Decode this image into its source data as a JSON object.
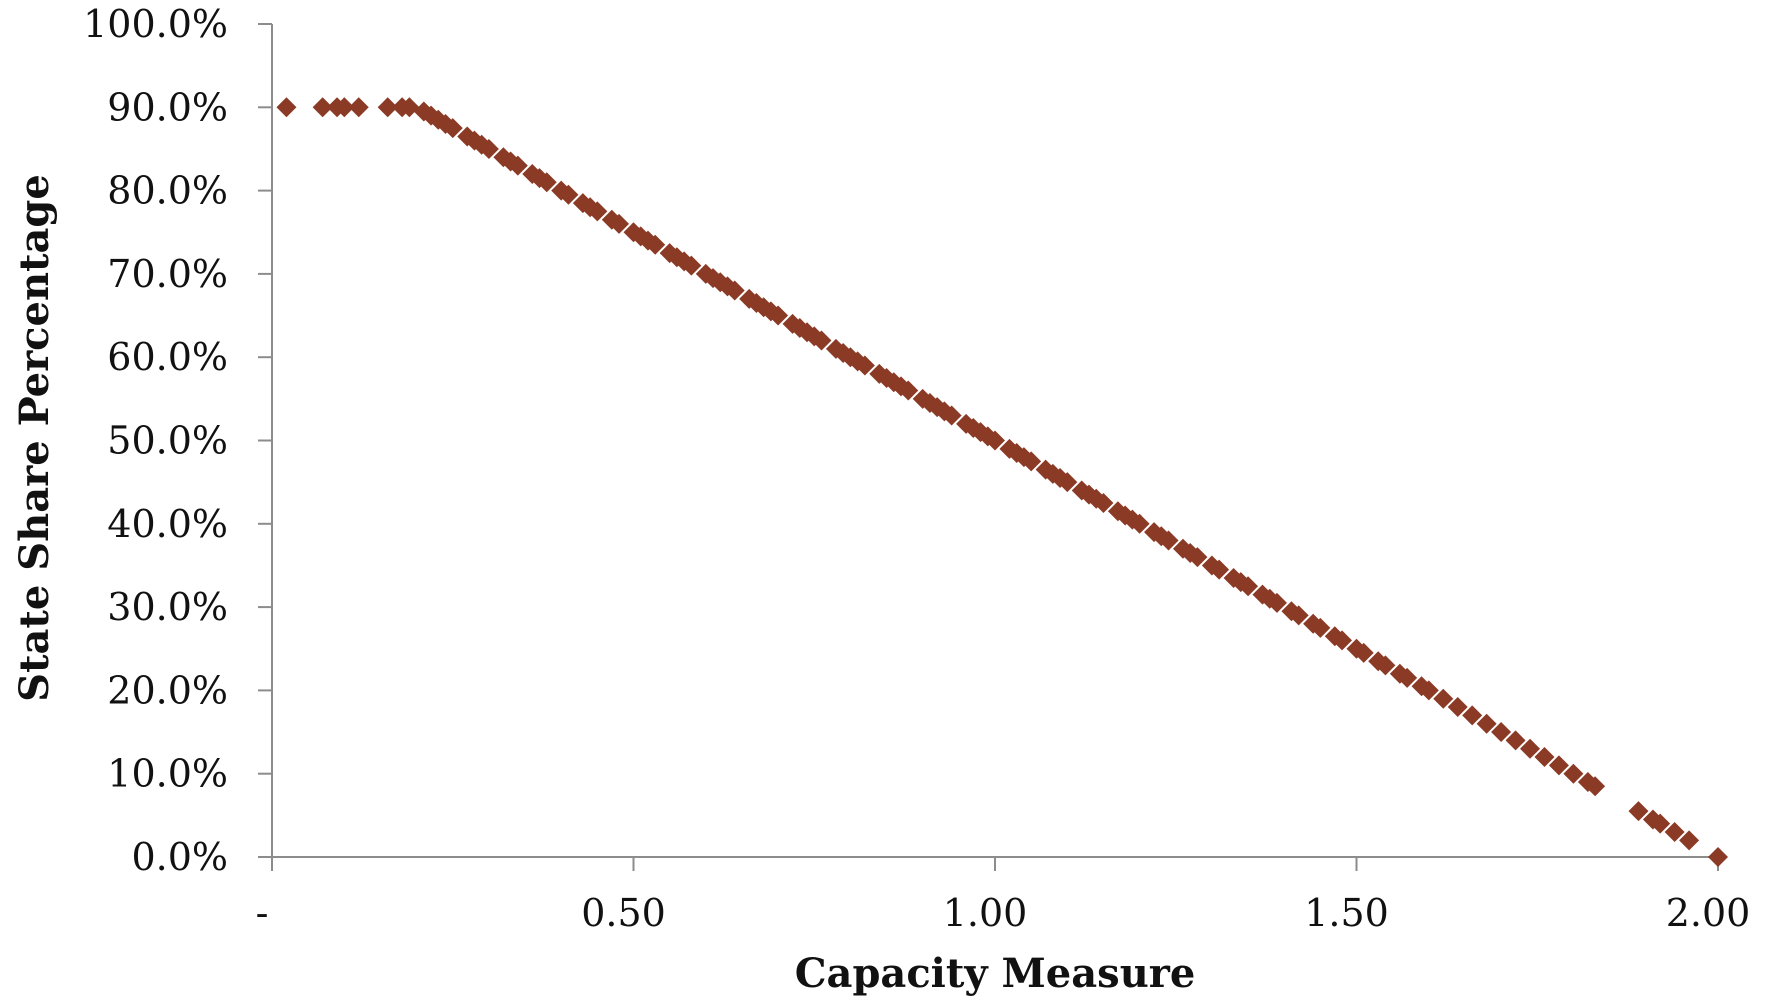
{
  "chart_data": {
    "type": "scatter",
    "title": "",
    "xlabel": "Capacity Measure",
    "ylabel": "State Share Percentage",
    "xlim": [
      0,
      2.0
    ],
    "ylim": [
      0,
      100
    ],
    "x_ticks": [
      {
        "value": 0,
        "label": "-"
      },
      {
        "value": 0.5,
        "label": "0.50"
      },
      {
        "value": 1.0,
        "label": "1.00"
      },
      {
        "value": 1.5,
        "label": "1.50"
      },
      {
        "value": 2.0,
        "label": "2.00"
      }
    ],
    "y_ticks": [
      {
        "value": 0,
        "label": "0.0%"
      },
      {
        "value": 10,
        "label": "10.0%"
      },
      {
        "value": 20,
        "label": "20.0%"
      },
      {
        "value": 30,
        "label": "30.0%"
      },
      {
        "value": 40,
        "label": "40.0%"
      },
      {
        "value": 50,
        "label": "50.0%"
      },
      {
        "value": 60,
        "label": "60.0%"
      },
      {
        "value": 70,
        "label": "70.0%"
      },
      {
        "value": 80,
        "label": "80.0%"
      },
      {
        "value": 90,
        "label": "90.0%"
      },
      {
        "value": 100,
        "label": "100.0%"
      }
    ],
    "grid": false,
    "marker": "diamond",
    "marker_color": "#8B3A26",
    "series": [
      {
        "relationship": "y = 90% for x < 0.2; otherwise y = 100% - 50% * x",
        "points": [
          [
            0.02,
            90.0
          ],
          [
            0.07,
            90.0
          ],
          [
            0.09,
            90.0
          ],
          [
            0.1,
            90.0
          ],
          [
            0.12,
            90.0
          ],
          [
            0.16,
            90.0
          ],
          [
            0.18,
            90.0
          ],
          [
            0.19,
            90.0
          ],
          [
            0.21,
            89.5
          ],
          [
            0.22,
            89.0
          ],
          [
            0.23,
            88.5
          ],
          [
            0.24,
            88.0
          ],
          [
            0.25,
            87.5
          ],
          [
            0.27,
            86.5
          ],
          [
            0.28,
            86.0
          ],
          [
            0.29,
            85.5
          ],
          [
            0.3,
            85.0
          ],
          [
            0.32,
            84.0
          ],
          [
            0.33,
            83.5
          ],
          [
            0.34,
            83.0
          ],
          [
            0.36,
            82.0
          ],
          [
            0.37,
            81.5
          ],
          [
            0.38,
            81.0
          ],
          [
            0.4,
            80.0
          ],
          [
            0.41,
            79.5
          ],
          [
            0.43,
            78.5
          ],
          [
            0.44,
            78.0
          ],
          [
            0.45,
            77.5
          ],
          [
            0.47,
            76.5
          ],
          [
            0.48,
            76.0
          ],
          [
            0.5,
            75.0
          ],
          [
            0.51,
            74.5
          ],
          [
            0.52,
            74.0
          ],
          [
            0.53,
            73.5
          ],
          [
            0.55,
            72.5
          ],
          [
            0.56,
            72.0
          ],
          [
            0.57,
            71.5
          ],
          [
            0.58,
            71.0
          ],
          [
            0.6,
            70.0
          ],
          [
            0.61,
            69.5
          ],
          [
            0.62,
            69.0
          ],
          [
            0.63,
            68.5
          ],
          [
            0.64,
            68.0
          ],
          [
            0.66,
            67.0
          ],
          [
            0.67,
            66.5
          ],
          [
            0.68,
            66.0
          ],
          [
            0.69,
            65.5
          ],
          [
            0.7,
            65.0
          ],
          [
            0.72,
            64.0
          ],
          [
            0.73,
            63.5
          ],
          [
            0.74,
            63.0
          ],
          [
            0.75,
            62.5
          ],
          [
            0.76,
            62.0
          ],
          [
            0.78,
            61.0
          ],
          [
            0.79,
            60.5
          ],
          [
            0.8,
            60.0
          ],
          [
            0.81,
            59.5
          ],
          [
            0.82,
            59.0
          ],
          [
            0.84,
            58.0
          ],
          [
            0.85,
            57.5
          ],
          [
            0.86,
            57.0
          ],
          [
            0.87,
            56.5
          ],
          [
            0.88,
            56.0
          ],
          [
            0.9,
            55.0
          ],
          [
            0.91,
            54.5
          ],
          [
            0.92,
            54.0
          ],
          [
            0.93,
            53.5
          ],
          [
            0.94,
            53.0
          ],
          [
            0.96,
            52.0
          ],
          [
            0.97,
            51.5
          ],
          [
            0.98,
            51.0
          ],
          [
            0.99,
            50.5
          ],
          [
            1.0,
            50.0
          ],
          [
            1.02,
            49.0
          ],
          [
            1.03,
            48.5
          ],
          [
            1.04,
            48.0
          ],
          [
            1.05,
            47.5
          ],
          [
            1.07,
            46.5
          ],
          [
            1.08,
            46.0
          ],
          [
            1.09,
            45.5
          ],
          [
            1.1,
            45.0
          ],
          [
            1.12,
            44.0
          ],
          [
            1.13,
            43.5
          ],
          [
            1.14,
            43.0
          ],
          [
            1.15,
            42.5
          ],
          [
            1.17,
            41.5
          ],
          [
            1.18,
            41.0
          ],
          [
            1.19,
            40.5
          ],
          [
            1.2,
            40.0
          ],
          [
            1.22,
            39.0
          ],
          [
            1.23,
            38.5
          ],
          [
            1.24,
            38.0
          ],
          [
            1.26,
            37.0
          ],
          [
            1.27,
            36.5
          ],
          [
            1.28,
            36.0
          ],
          [
            1.3,
            35.0
          ],
          [
            1.31,
            34.5
          ],
          [
            1.33,
            33.5
          ],
          [
            1.34,
            33.0
          ],
          [
            1.35,
            32.5
          ],
          [
            1.37,
            31.5
          ],
          [
            1.38,
            31.0
          ],
          [
            1.39,
            30.5
          ],
          [
            1.41,
            29.5
          ],
          [
            1.42,
            29.0
          ],
          [
            1.44,
            28.0
          ],
          [
            1.45,
            27.5
          ],
          [
            1.47,
            26.5
          ],
          [
            1.48,
            26.0
          ],
          [
            1.5,
            25.0
          ],
          [
            1.51,
            24.5
          ],
          [
            1.53,
            23.5
          ],
          [
            1.54,
            23.0
          ],
          [
            1.56,
            22.0
          ],
          [
            1.57,
            21.5
          ],
          [
            1.59,
            20.5
          ],
          [
            1.6,
            20.0
          ],
          [
            1.62,
            19.0
          ],
          [
            1.64,
            18.0
          ],
          [
            1.66,
            17.0
          ],
          [
            1.68,
            16.0
          ],
          [
            1.7,
            15.0
          ],
          [
            1.72,
            14.0
          ],
          [
            1.74,
            13.0
          ],
          [
            1.76,
            12.0
          ],
          [
            1.78,
            11.0
          ],
          [
            1.8,
            10.0
          ],
          [
            1.82,
            9.0
          ],
          [
            1.83,
            8.5
          ],
          [
            1.89,
            5.5
          ],
          [
            1.91,
            4.5
          ],
          [
            1.92,
            4.0
          ],
          [
            1.94,
            3.0
          ],
          [
            1.96,
            2.0
          ],
          [
            2.0,
            0.0
          ]
        ]
      }
    ]
  }
}
